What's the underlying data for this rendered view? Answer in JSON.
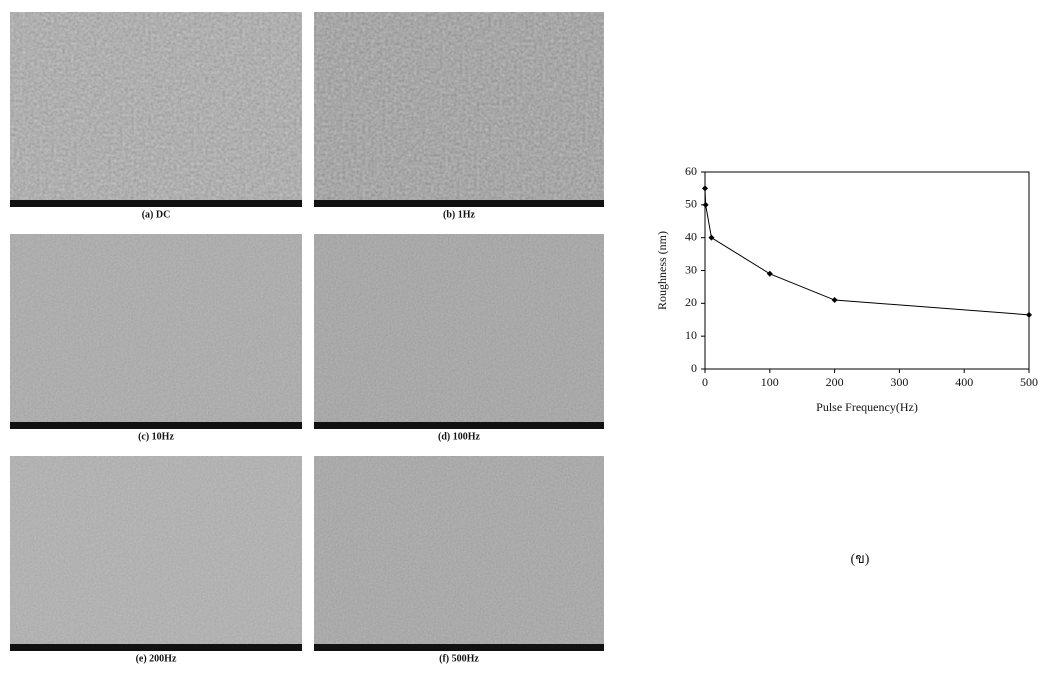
{
  "panels": [
    {
      "caption": "(a) DC"
    },
    {
      "caption": "(b) 1Hz"
    },
    {
      "caption": "(c) 10Hz"
    },
    {
      "caption": "(d) 100Hz"
    },
    {
      "caption": "(e) 200Hz"
    },
    {
      "caption": "(f) 500Hz"
    }
  ],
  "chart_data": {
    "type": "line",
    "x_label": "Pulse Frequency(Hz)",
    "y_label": "Roughness (nm)",
    "x": [
      0,
      1,
      10,
      100,
      200,
      500
    ],
    "values": [
      55,
      50,
      40,
      29,
      21,
      16.5
    ],
    "color": "#000000",
    "xlim": [
      0,
      500
    ],
    "xticks": [
      0,
      100,
      200,
      300,
      400,
      500
    ],
    "ylim": [
      0,
      60
    ],
    "yticks": [
      0,
      10,
      20,
      30,
      40,
      50,
      60
    ],
    "grid": false
  },
  "figure_label": "(ข)"
}
